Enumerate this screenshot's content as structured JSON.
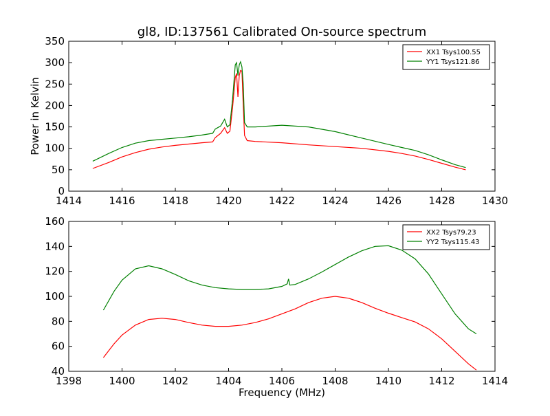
{
  "figure": {
    "title": "gl8, ID:137561 Calibrated On-source spectrum",
    "xlabel": "Frequency (MHz)",
    "ylabel": "Power in Kelvin"
  },
  "colors": {
    "red": "#ff0000",
    "green": "#008000"
  },
  "chart_data": [
    {
      "type": "line",
      "xlim": [
        1414,
        1430
      ],
      "ylim": [
        0,
        350
      ],
      "xticks": [
        1414,
        1416,
        1418,
        1420,
        1422,
        1424,
        1426,
        1428,
        1430
      ],
      "yticks": [
        0,
        50,
        100,
        150,
        200,
        250,
        300,
        350
      ],
      "legend_position": "top-right",
      "series": [
        {
          "name": "XX1 Tsys100.55",
          "color": "#ff0000",
          "x": [
            1414.9,
            1415.5,
            1416.0,
            1416.5,
            1417.0,
            1417.5,
            1418.0,
            1418.5,
            1419.0,
            1419.4,
            1419.5,
            1419.7,
            1419.85,
            1419.95,
            1420.05,
            1420.15,
            1420.25,
            1420.3,
            1420.35,
            1420.4,
            1420.45,
            1420.5,
            1420.55,
            1420.6,
            1420.7,
            1421.0,
            1422.0,
            1423.0,
            1424.0,
            1425.0,
            1426.0,
            1426.5,
            1427.0,
            1427.5,
            1428.0,
            1428.5,
            1428.9
          ],
          "y": [
            53,
            67,
            80,
            90,
            98,
            103,
            107,
            110,
            113,
            115,
            125,
            135,
            148,
            135,
            140,
            195,
            265,
            275,
            220,
            270,
            282,
            280,
            200,
            130,
            118,
            116,
            113,
            108,
            104,
            100,
            93,
            88,
            82,
            74,
            65,
            56,
            50
          ]
        },
        {
          "name": "YY1 Tsys121.86",
          "color": "#008000",
          "x": [
            1414.9,
            1415.5,
            1416.0,
            1416.5,
            1417.0,
            1417.5,
            1418.0,
            1418.5,
            1419.0,
            1419.4,
            1419.5,
            1419.7,
            1419.85,
            1419.95,
            1420.05,
            1420.15,
            1420.25,
            1420.3,
            1420.35,
            1420.4,
            1420.45,
            1420.5,
            1420.55,
            1420.6,
            1420.7,
            1421.0,
            1422.0,
            1423.0,
            1424.0,
            1425.0,
            1426.0,
            1426.5,
            1427.0,
            1427.5,
            1428.0,
            1428.5,
            1428.9
          ],
          "y": [
            70,
            88,
            102,
            112,
            118,
            121,
            124,
            127,
            131,
            135,
            145,
            152,
            168,
            150,
            155,
            215,
            295,
            300,
            270,
            295,
            302,
            290,
            250,
            160,
            150,
            150,
            154,
            150,
            139,
            124,
            109,
            102,
            95,
            85,
            73,
            62,
            55
          ]
        }
      ]
    },
    {
      "type": "line",
      "xlim": [
        1398,
        1414
      ],
      "ylim": [
        40,
        160
      ],
      "xticks": [
        1398,
        1400,
        1402,
        1404,
        1406,
        1408,
        1410,
        1412,
        1414
      ],
      "yticks": [
        40,
        60,
        80,
        100,
        120,
        140,
        160
      ],
      "legend_position": "top-right",
      "series": [
        {
          "name": "XX2 Tsys79.23",
          "color": "#ff0000",
          "x": [
            1399.3,
            1399.7,
            1400.0,
            1400.5,
            1401.0,
            1401.5,
            1402.0,
            1402.5,
            1403.0,
            1403.5,
            1404.0,
            1404.5,
            1405.0,
            1405.5,
            1406.0,
            1406.5,
            1407.0,
            1407.5,
            1408.0,
            1408.5,
            1409.0,
            1409.5,
            1410.0,
            1410.5,
            1411.0,
            1411.5,
            1412.0,
            1412.5,
            1413.0,
            1413.3
          ],
          "y": [
            51,
            62,
            69,
            77,
            81.5,
            82.5,
            81.5,
            79,
            77,
            76,
            76,
            77,
            79,
            82,
            86,
            90,
            95,
            98.5,
            100,
            98.5,
            95,
            90.5,
            86.5,
            83,
            79.5,
            74,
            66,
            56,
            46,
            41
          ]
        },
        {
          "name": "YY2 Tsys115.43",
          "color": "#008000",
          "x": [
            1399.3,
            1399.7,
            1400.0,
            1400.5,
            1401.0,
            1401.5,
            1402.0,
            1402.5,
            1403.0,
            1403.5,
            1404.0,
            1404.5,
            1405.0,
            1405.5,
            1406.0,
            1406.2,
            1406.25,
            1406.3,
            1406.5,
            1407.0,
            1407.5,
            1408.0,
            1408.5,
            1409.0,
            1409.5,
            1410.0,
            1410.5,
            1411.0,
            1411.5,
            1412.0,
            1412.5,
            1413.0,
            1413.3
          ],
          "y": [
            89,
            104,
            113,
            122,
            124.5,
            122,
            117.5,
            112.5,
            109,
            107,
            106,
            105.5,
            105.5,
            106,
            108,
            110,
            114,
            109,
            109.5,
            114,
            119.5,
            125.5,
            131.5,
            136.5,
            140,
            140.5,
            137,
            130,
            118,
            102,
            86,
            74,
            70
          ]
        }
      ]
    }
  ]
}
